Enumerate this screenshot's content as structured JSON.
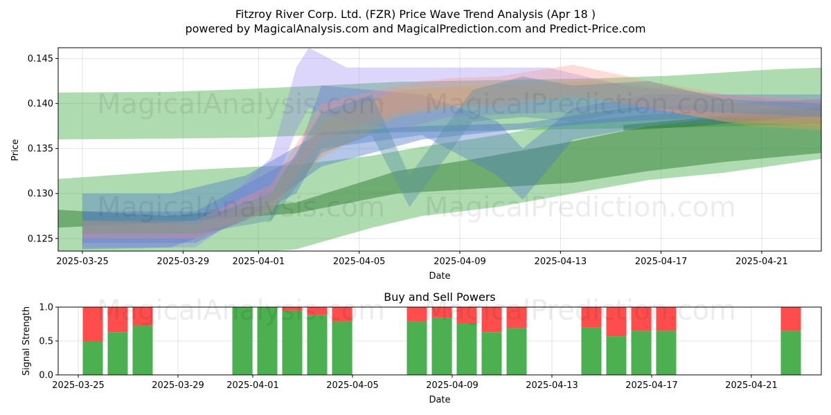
{
  "chart_data": [
    {
      "type": "area",
      "title": "Fitzroy River Corp. Ltd. (FZR) Price Wave Trend Analysis (Apr 18 )",
      "subtitle": "powered by MagicalAnalysis.com and MagicalPrediction.com and Predict-Price.com",
      "xlabel": "Date",
      "ylabel": "Price",
      "ylim": [
        0.1236,
        0.1462
      ],
      "xlim": [
        "2025-03-23.6",
        "2025-04-23.3"
      ],
      "x_ticks": [
        "2025-03-25",
        "2025-03-29",
        "2025-04-01",
        "2025-04-05",
        "2025-04-09",
        "2025-04-13",
        "2025-04-17",
        "2025-04-21"
      ],
      "y_ticks": [
        "0.125",
        "0.130",
        "0.135",
        "0.140",
        "0.145"
      ],
      "grid": true,
      "watermarks": [
        "MagicalAnalysis.com",
        "MagicalPrediction.com"
      ],
      "series": [
        {
          "name": "green band A",
          "color": "#4caf50",
          "opacity": 0.45,
          "x": [
            -1.5,
            3.5,
            6.5,
            9.5,
            12.5,
            16.5,
            20.5,
            23.5,
            27.5,
            30.5
          ],
          "low": [
            0.136,
            0.1361,
            0.1362,
            0.1365,
            0.1368,
            0.137,
            0.1372,
            0.1373,
            0.1376,
            0.1378
          ],
          "high": [
            0.1412,
            0.1413,
            0.1416,
            0.142,
            0.1424,
            0.1426,
            0.1428,
            0.1431,
            0.1438,
            0.1441
          ]
        },
        {
          "name": "green band B",
          "color": "#4caf50",
          "opacity": 0.45,
          "x": [
            -1.5,
            3.5,
            8.5,
            11.5,
            13.5,
            16.5,
            19.5,
            22.5,
            25.5,
            30.5
          ],
          "low": [
            0.123,
            0.1228,
            0.1238,
            0.1262,
            0.1275,
            0.1285,
            0.13,
            0.1315,
            0.1323,
            0.1343
          ],
          "high": [
            0.1315,
            0.1325,
            0.1332,
            0.1342,
            0.1352,
            0.1365,
            0.138,
            0.1388,
            0.1392,
            0.14
          ]
        },
        {
          "name": "green band C",
          "color": "#2e7d32",
          "opacity": 0.5,
          "x": [
            -1,
            3.5,
            8.5,
            12.5,
            15.5,
            19.5,
            22.5,
            25.5,
            30.5
          ],
          "low": [
            0.1262,
            0.1268,
            0.1278,
            0.13,
            0.1305,
            0.1312,
            0.1325,
            0.1335,
            0.1348
          ],
          "high": [
            0.1282,
            0.1275,
            0.129,
            0.1325,
            0.1338,
            0.1358,
            0.1375,
            0.1385,
            0.1398
          ]
        },
        {
          "name": "green band D",
          "color": "#2e7d32",
          "opacity": 0.55,
          "x": [
            21.5,
            24.5,
            27.5,
            30.5
          ],
          "low": [
            0.137,
            0.1375,
            0.1383,
            0.1388
          ],
          "high": [
            0.1376,
            0.1384,
            0.1393,
            0.1395
          ]
        },
        {
          "name": "blue band A",
          "color": "#4f79c9",
          "opacity": 0.42,
          "x": [
            0,
            3.5,
            6.5,
            9.5,
            13.5,
            17.5,
            21.5,
            25.5,
            29.5
          ],
          "low": [
            0.1238,
            0.124,
            0.127,
            0.133,
            0.136,
            0.1372,
            0.138,
            0.1385,
            0.1388
          ],
          "high": [
            0.13,
            0.13,
            0.132,
            0.1368,
            0.1375,
            0.1378,
            0.1395,
            0.14,
            0.1405
          ]
        },
        {
          "name": "blue band B",
          "color": "#4f79c9",
          "opacity": 0.38,
          "x": [
            0,
            4.5,
            8.5,
            9.5,
            13.5,
            16.5,
            17.5,
            19.5,
            22.5,
            25.5,
            29.5
          ],
          "low": [
            0.1245,
            0.1245,
            0.13,
            0.135,
            0.1365,
            0.132,
            0.1293,
            0.136,
            0.1375,
            0.1378,
            0.1385
          ],
          "high": [
            0.128,
            0.128,
            0.134,
            0.142,
            0.141,
            0.138,
            0.135,
            0.1395,
            0.141,
            0.141,
            0.141
          ]
        },
        {
          "name": "violet band",
          "color": "#8c7cf0",
          "opacity": 0.3,
          "x": [
            0,
            4.5,
            7.5,
            8.5,
            9.0,
            10.5,
            12.5,
            14.5,
            18.5,
            21.5,
            25.5,
            29.5
          ],
          "low": [
            0.124,
            0.124,
            0.13,
            0.137,
            0.1395,
            0.138,
            0.137,
            0.1385,
            0.139,
            0.1395,
            0.1385,
            0.138
          ],
          "high": [
            0.126,
            0.126,
            0.134,
            0.144,
            0.1462,
            0.144,
            0.144,
            0.144,
            0.144,
            0.142,
            0.141,
            0.14
          ]
        },
        {
          "name": "pink band",
          "color": "#ff8a80",
          "opacity": 0.3,
          "x": [
            0,
            4.5,
            7.5,
            9.5,
            12.5,
            14.5,
            16.5,
            19.5,
            22.5,
            25.5,
            29.5
          ],
          "low": [
            0.125,
            0.125,
            0.128,
            0.136,
            0.139,
            0.14,
            0.1395,
            0.141,
            0.1395,
            0.138,
            0.1375
          ],
          "high": [
            0.127,
            0.127,
            0.131,
            0.14,
            0.142,
            0.1428,
            0.143,
            0.1443,
            0.1425,
            0.141,
            0.1405
          ]
        },
        {
          "name": "orange band",
          "color": "#d9a05b",
          "opacity": 0.35,
          "x": [
            0,
            4.5,
            7.5,
            9.5,
            12.5,
            14.5,
            17.5,
            20.5,
            23.5,
            26.5,
            29.5
          ],
          "low": [
            0.1255,
            0.1255,
            0.128,
            0.134,
            0.1385,
            0.1395,
            0.1405,
            0.1405,
            0.139,
            0.1375,
            0.137
          ],
          "high": [
            0.127,
            0.1265,
            0.13,
            0.138,
            0.1415,
            0.1418,
            0.1422,
            0.1425,
            0.1418,
            0.14,
            0.1392
          ]
        },
        {
          "name": "teal zigzag",
          "color": "#5b8fa8",
          "opacity": 0.4,
          "x": [
            0,
            4.5,
            7.5,
            9.5,
            11.5,
            13.0,
            15.5,
            17.5,
            19.5,
            22.5,
            25.5,
            29.5
          ],
          "low": [
            0.1255,
            0.1255,
            0.127,
            0.1345,
            0.1365,
            0.1285,
            0.138,
            0.1385,
            0.138,
            0.1395,
            0.139,
            0.1385
          ],
          "high": [
            0.1275,
            0.127,
            0.13,
            0.139,
            0.141,
            0.132,
            0.1415,
            0.143,
            0.142,
            0.1425,
            0.1405,
            0.14
          ]
        }
      ]
    },
    {
      "type": "bar",
      "title": "Buy and Sell Powers",
      "xlabel": "Date",
      "ylabel": "Signal Strength",
      "ylim": [
        0.0,
        1.0
      ],
      "y_ticks": [
        "0.0",
        "0.5",
        "1.0"
      ],
      "x_ticks": [
        "2025-03-25",
        "2025-03-29",
        "2025-04-01",
        "2025-04-05",
        "2025-04-09",
        "2025-04-13",
        "2025-04-17",
        "2025-04-21"
      ],
      "buy_color": "#4caf50",
      "sell_color": "#ff4d4d",
      "bars": [
        {
          "date": "2025-03-25",
          "buy": 0.5
        },
        {
          "date": "2025-03-26",
          "buy": 0.63
        },
        {
          "date": "2025-03-27",
          "buy": 0.73
        },
        {
          "date": "2025-03-31",
          "buy": 1.0
        },
        {
          "date": "2025-04-01",
          "buy": 1.0
        },
        {
          "date": "2025-04-02",
          "buy": 0.95
        },
        {
          "date": "2025-04-03",
          "buy": 0.88
        },
        {
          "date": "2025-04-04",
          "buy": 0.79
        },
        {
          "date": "2025-04-07",
          "buy": 0.79
        },
        {
          "date": "2025-04-08",
          "buy": 0.84
        },
        {
          "date": "2025-04-09",
          "buy": 0.76
        },
        {
          "date": "2025-04-10",
          "buy": 0.63
        },
        {
          "date": "2025-04-11",
          "buy": 0.69
        },
        {
          "date": "2025-04-14",
          "buy": 0.7
        },
        {
          "date": "2025-04-15",
          "buy": 0.57
        },
        {
          "date": "2025-04-16",
          "buy": 0.65
        },
        {
          "date": "2025-04-17",
          "buy": 0.65
        },
        {
          "date": "2025-04-22",
          "buy": 0.65
        }
      ]
    }
  ]
}
